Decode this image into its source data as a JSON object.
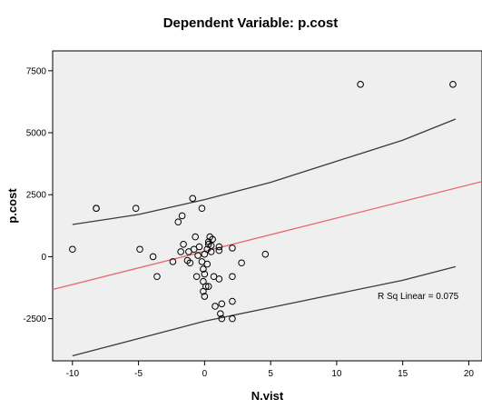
{
  "chart_data": {
    "type": "scatter",
    "title": "Dependent Variable: p.cost",
    "xlabel": "N.vist",
    "ylabel": "p.cost",
    "xlim": [
      -11.5,
      21
    ],
    "ylim": [
      -4200,
      8300
    ],
    "x_ticks": [
      -10,
      -5,
      0,
      5,
      10,
      15,
      20
    ],
    "y_ticks": [
      -2500,
      0,
      2500,
      5000,
      7500
    ],
    "x_tick_labels": [
      "-10",
      "-5",
      "0",
      "5",
      "10",
      "15",
      "20"
    ],
    "y_tick_labels": [
      "-2500",
      "0",
      "2500",
      "5000",
      "7500"
    ],
    "annotation": "R Sq Linear = 0.075",
    "grid": false,
    "legend": "none",
    "plot_background": "#efefef",
    "point_color": "#000000",
    "fit_line": {
      "type": "linear",
      "color": "#e8656a",
      "intercept": 218,
      "slope": 134
    },
    "confidence_band": {
      "color": "#3a3a3a",
      "upper": [
        [
          -10,
          1300
        ],
        [
          -5,
          1700
        ],
        [
          0,
          2300
        ],
        [
          5,
          3000
        ],
        [
          10,
          3850
        ],
        [
          15,
          4700
        ],
        [
          19,
          5550
        ]
      ],
      "lower": [
        [
          -10,
          -4000
        ],
        [
          -5,
          -3300
        ],
        [
          0,
          -2600
        ],
        [
          5,
          -2050
        ],
        [
          10,
          -1500
        ],
        [
          15,
          -950
        ],
        [
          19,
          -400
        ]
      ]
    },
    "points": [
      [
        -10,
        300
      ],
      [
        -8.2,
        1950
      ],
      [
        -8.2,
        1950
      ],
      [
        -5.2,
        1950
      ],
      [
        -4.9,
        300
      ],
      [
        -3.9,
        0
      ],
      [
        -3.6,
        -800
      ],
      [
        -2.4,
        -200
      ],
      [
        -2,
        1400
      ],
      [
        -1.7,
        1650
      ],
      [
        -1.6,
        500
      ],
      [
        -1.8,
        200
      ],
      [
        -1.3,
        -150
      ],
      [
        -1.1,
        -250
      ],
      [
        -1.2,
        200
      ],
      [
        -0.9,
        2350
      ],
      [
        -0.8,
        300
      ],
      [
        -0.7,
        800
      ],
      [
        -0.6,
        -800
      ],
      [
        -0.5,
        50
      ],
      [
        -0.4,
        400
      ],
      [
        -0.2,
        -200
      ],
      [
        -0.2,
        1950
      ],
      [
        -0.1,
        -500
      ],
      [
        -0.1,
        -1000
      ],
      [
        -0.1,
        -1400
      ],
      [
        0,
        -1600
      ],
      [
        0,
        -700
      ],
      [
        0,
        100
      ],
      [
        0.1,
        -1200
      ],
      [
        0.2,
        -300
      ],
      [
        0.2,
        300
      ],
      [
        0.3,
        500
      ],
      [
        0.3,
        600
      ],
      [
        0.4,
        800
      ],
      [
        0.5,
        200
      ],
      [
        0.5,
        450
      ],
      [
        0.6,
        700
      ],
      [
        0.7,
        -800
      ],
      [
        0.3,
        -1200
      ],
      [
        0.8,
        -2000
      ],
      [
        1.1,
        -900
      ],
      [
        1.1,
        250
      ],
      [
        1.1,
        400
      ],
      [
        1.2,
        -2300
      ],
      [
        1.3,
        -2500
      ],
      [
        1.3,
        -1900
      ],
      [
        2.1,
        -2500
      ],
      [
        2.1,
        -1800
      ],
      [
        2.1,
        -800
      ],
      [
        2.1,
        350
      ],
      [
        2.8,
        -250
      ],
      [
        4.6,
        100
      ],
      [
        11.8,
        6950
      ],
      [
        18.8,
        6950
      ]
    ]
  }
}
